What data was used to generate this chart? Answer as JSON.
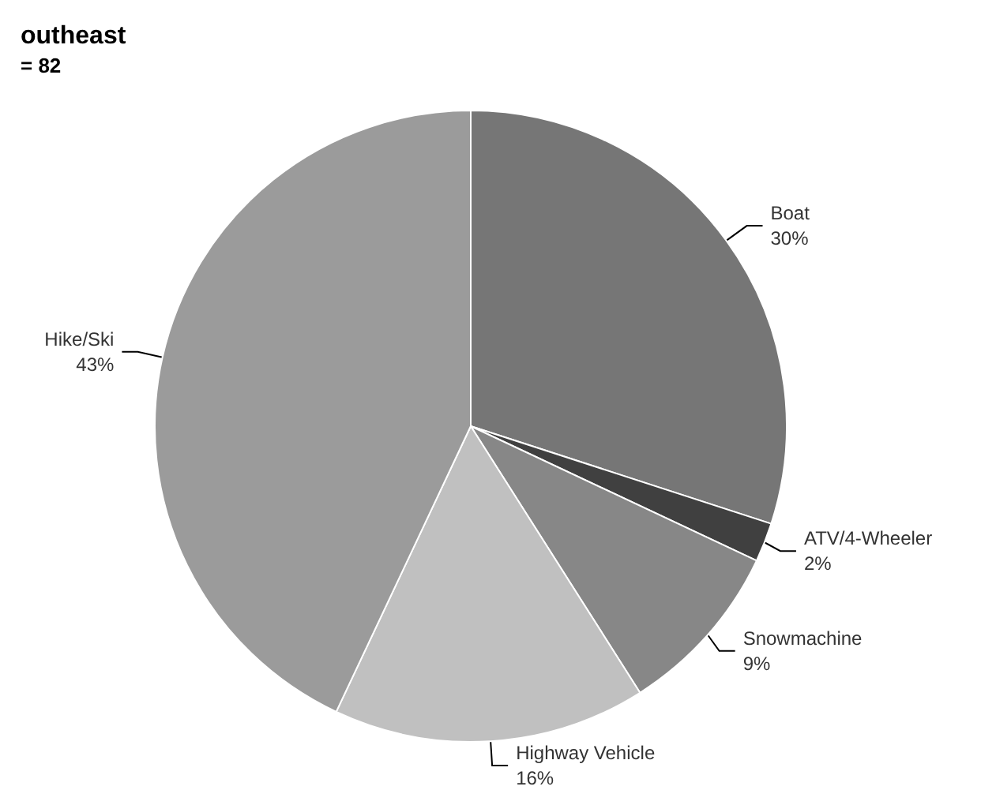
{
  "chart_data": {
    "type": "pie",
    "title": "outheast",
    "subtitle": "= 82",
    "categories": [
      "Boat",
      "ATV/4-Wheeler",
      "Snowmachine",
      "Highway Vehicle",
      "Hike/Ski"
    ],
    "values": [
      30,
      2,
      9,
      16,
      43
    ],
    "value_labels": [
      "30%",
      "2%",
      "9%",
      "16%",
      "43%"
    ],
    "colors": [
      "#767676",
      "#404040",
      "#878787",
      "#c0c0c0",
      "#9b9b9b"
    ],
    "legend": false
  }
}
